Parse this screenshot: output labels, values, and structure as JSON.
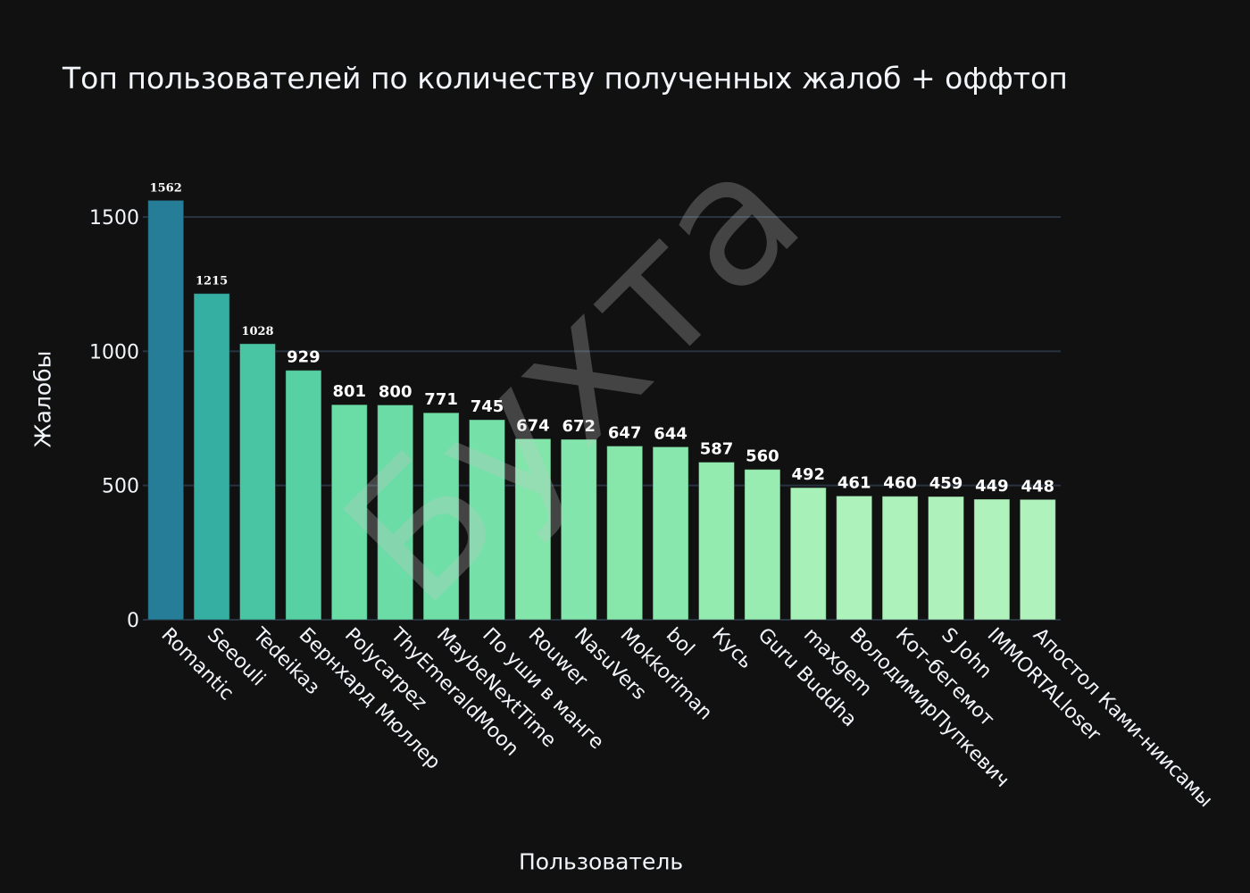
{
  "chart_data": {
    "type": "bar",
    "title": "Топ пользователей по количеству полученных жалоб + оффтоп",
    "xlabel": "Пользователь",
    "ylabel": "Жалобы",
    "ylim": [
      0,
      1590
    ],
    "yticks": [
      0,
      500,
      1000,
      1500
    ],
    "grid": true,
    "categories": [
      "Romantic",
      "Seeouli",
      "Tedeikaз",
      "Бернхард Мюллер",
      "Polycarpez",
      "ThyEmeraldMoon",
      "MaybeNextTime",
      "По уши в манге",
      "Rouwer",
      "NasuVers",
      "Mokkoriman",
      "bol",
      "Кусь",
      "Guru Buddha",
      "maxgem",
      "ВолодимирПупкевич",
      "Кот-бегемот",
      "S John",
      "IMMORTALloser",
      "Апостол Ками-ниисамы"
    ],
    "values": [
      1562,
      1215,
      1028,
      929,
      801,
      800,
      771,
      745,
      674,
      672,
      647,
      644,
      587,
      560,
      492,
      461,
      460,
      459,
      449,
      448
    ],
    "colorscale": [
      "#b0f2bc",
      "#89e8ac",
      "#67dba5",
      "#4cc8a3",
      "#38b2a3",
      "#2c98a0",
      "#257d98"
    ],
    "watermark": "Бухта"
  },
  "colors": {
    "background": "#111111",
    "grid": "#283442",
    "text": "#f2f5fa"
  }
}
